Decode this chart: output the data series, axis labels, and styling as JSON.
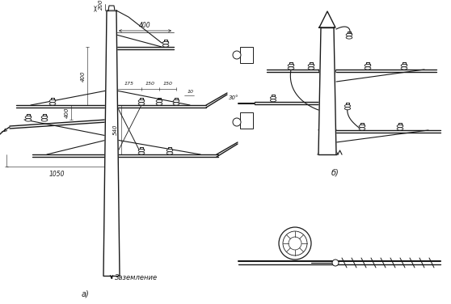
{
  "bg_color": "#ffffff",
  "line_color": "#1a1a1a",
  "title_a": "а)",
  "title_b": "б)",
  "label_ground": "Заземление",
  "dim_200": "200",
  "dim_400_top": "400",
  "dim_400_v1": "400",
  "dim_400_v2": "400",
  "dim_540": "540",
  "dim_1050": "1050",
  "dim_175": "175",
  "dim_150a": "150",
  "dim_150b": "150",
  "dim_10": "10",
  "dim_30": "30°"
}
